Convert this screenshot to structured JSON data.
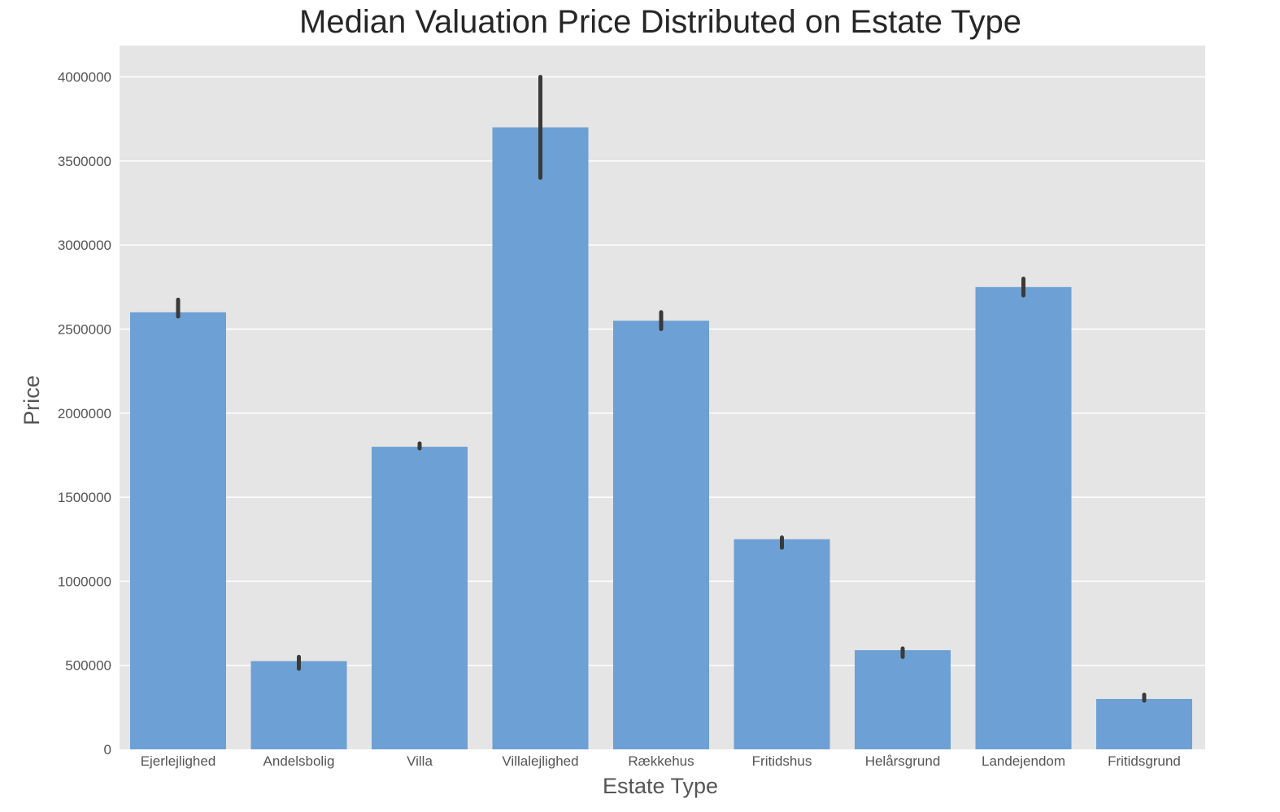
{
  "chart_data": {
    "type": "bar",
    "title": "Median Valuation Price Distributed on Estate Type",
    "xlabel": "Estate Type",
    "ylabel": "Price",
    "categories": [
      "Ejerlejlighed",
      "Andelsbolig",
      "Villa",
      "Villalejlighed",
      "Rækkehus",
      "Fritidshus",
      "Helårsgrund",
      "Landejendom",
      "Fritidsgrund"
    ],
    "values": [
      2600000,
      525000,
      1800000,
      3700000,
      2550000,
      1250000,
      590000,
      2750000,
      300000
    ],
    "error_low": [
      2575000,
      480000,
      1790000,
      3400000,
      2500000,
      1200000,
      550000,
      2700000,
      290000
    ],
    "error_high": [
      2675000,
      550000,
      1820000,
      4000000,
      2600000,
      1260000,
      600000,
      2800000,
      325000
    ],
    "ylim": [
      0,
      4200000
    ],
    "yticks": [
      0,
      500000,
      1000000,
      1500000,
      2000000,
      2500000,
      3000000,
      3500000,
      4000000
    ],
    "ytick_labels": [
      "0",
      "500000",
      "1000000",
      "1500000",
      "2000000",
      "2500000",
      "3000000",
      "3500000",
      "4000000"
    ],
    "grid": true,
    "colors": {
      "bar": "#6da0d4",
      "error_bar": "#3a3a3a",
      "plot_background": "#e5e5e5",
      "grid": "#ffffff"
    }
  }
}
